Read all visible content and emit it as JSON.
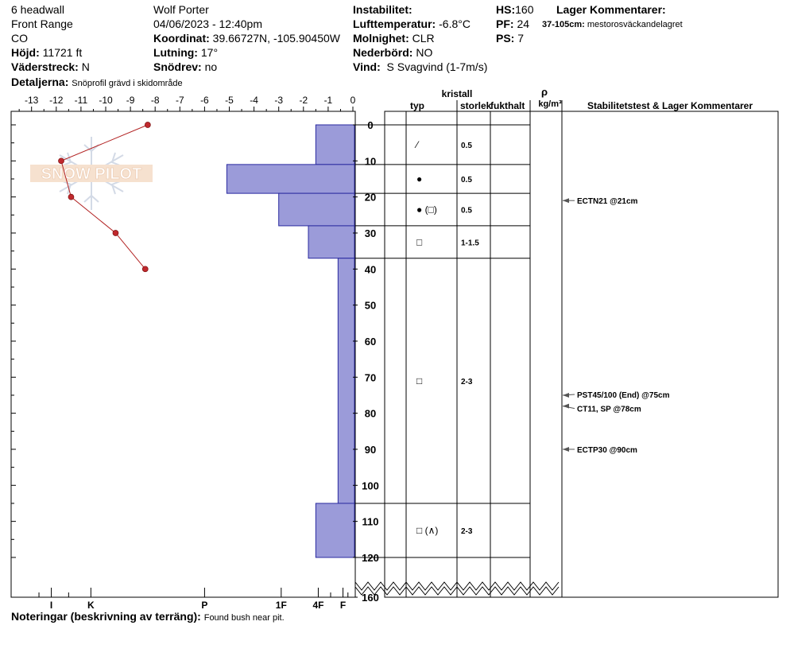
{
  "header": {
    "location": "6 headwall",
    "range": "Front Range",
    "state": "CO",
    "elevation": {
      "label": "Höjd:",
      "value": "11721 ft"
    },
    "aspect": {
      "label": "Väderstreck:",
      "value": "N"
    },
    "details": {
      "label": "Detaljerna:",
      "value": "Snöprofil grävd i skidområde"
    },
    "observer": "Wolf Porter",
    "datetime": "04/06/2023 - 12:40pm",
    "coordinates": {
      "label": "Koordinat:",
      "value": "39.66727N, -105.90450W"
    },
    "slope": {
      "label": "Lutning:",
      "value": "17°"
    },
    "drift": {
      "label": "Snödrev:",
      "value": "no"
    },
    "instability": {
      "label": "Instabilitet:",
      "value": ""
    },
    "air_temp": {
      "label": "Lufttemperatur:",
      "value": "-6.8°C"
    },
    "sky": {
      "label": "Molnighet:",
      "value": "CLR"
    },
    "precip": {
      "label": "Nederbörd:",
      "value": "NO"
    },
    "wind": {
      "label": "Vind:",
      "value": "S Svagvind (1-7m/s)"
    },
    "hs": {
      "label": "HS:",
      "value": "160"
    },
    "pf": {
      "label": "PF:",
      "value": "24"
    },
    "ps": {
      "label": "PS:",
      "value": "7"
    },
    "layer_comments_title": "Lager Kommentarer:",
    "layer_comment": {
      "label": "37-105cm:",
      "value": "mestorosväckandelagret"
    }
  },
  "footer": {
    "label": "Noteringar (beskrivning av terräng):",
    "value": "Found bush near pit."
  },
  "watermark": "SNOW PILOT",
  "table_headers": {
    "kristall": "kristall",
    "typ": "typ",
    "storlek": "storlek",
    "fukthalt": "fukthalt",
    "rho": "ρ",
    "density_unit": "kg/m³",
    "stability": "Stabilitetstest & Lager Kommentarer"
  },
  "colors": {
    "hardness_fill": "#9b9bd9",
    "hardness_stroke": "#2a2aa0",
    "temp_line": "#b22222",
    "temp_point": "#c0282d"
  },
  "chart_data": {
    "type": "snow_profile",
    "temperature_axis": {
      "ticks": [
        "-13",
        "-12",
        "-11",
        "-10",
        "-9",
        "-8",
        "-7",
        "-6",
        "-5",
        "-4",
        "-3",
        "-2",
        "-1",
        "0"
      ],
      "range": [
        -13.5,
        0
      ]
    },
    "depth_axis": {
      "ticks": [
        "0",
        "10",
        "20",
        "30",
        "40",
        "50",
        "60",
        "70",
        "80",
        "90",
        "100",
        "110",
        "120",
        "160"
      ],
      "range_cm": [
        0,
        120
      ],
      "total_depth": 160
    },
    "hardness_axis": {
      "labels": [
        "I",
        "K",
        "P",
        "1F",
        "4F",
        "F"
      ],
      "positions_temp": [
        -12.2,
        -10.6,
        -6.0,
        -2.9,
        -1.4,
        -0.4
      ]
    },
    "temperature_profile": [
      {
        "depth": 0,
        "temp": -8.3
      },
      {
        "depth": 10,
        "temp": -11.8
      },
      {
        "depth": 20,
        "temp": -11.4
      },
      {
        "depth": 30,
        "temp": -9.6
      },
      {
        "depth": 40,
        "temp": -8.4
      }
    ],
    "layers": [
      {
        "top": 0,
        "bottom": 11,
        "hardness_temp": -1.5,
        "crystal": "⁄",
        "size": "0.5"
      },
      {
        "top": 11,
        "bottom": 19,
        "hardness_temp": -5.1,
        "crystal": "●",
        "size": "0.5"
      },
      {
        "top": 19,
        "bottom": 28,
        "hardness_temp": -3.0,
        "crystal": "● (□)",
        "size": "0.5"
      },
      {
        "top": 28,
        "bottom": 37,
        "hardness_temp": -1.8,
        "crystal": "□",
        "size": "1-1.5"
      },
      {
        "top": 37,
        "bottom": 105,
        "hardness_temp": -0.6,
        "crystal": "□",
        "size": "2-3"
      },
      {
        "top": 105,
        "bottom": 120,
        "hardness_temp": -1.5,
        "crystal": "□ (∧)",
        "size": "2-3"
      }
    ],
    "stability_tests": [
      {
        "depth": 21,
        "text": "ECTN21 @21cm"
      },
      {
        "depth": 75,
        "text": "PST45/100 (End) @75cm"
      },
      {
        "depth": 78,
        "text": "CT11, SP @78cm"
      },
      {
        "depth": 90,
        "text": "ECTP30 @90cm"
      }
    ]
  }
}
